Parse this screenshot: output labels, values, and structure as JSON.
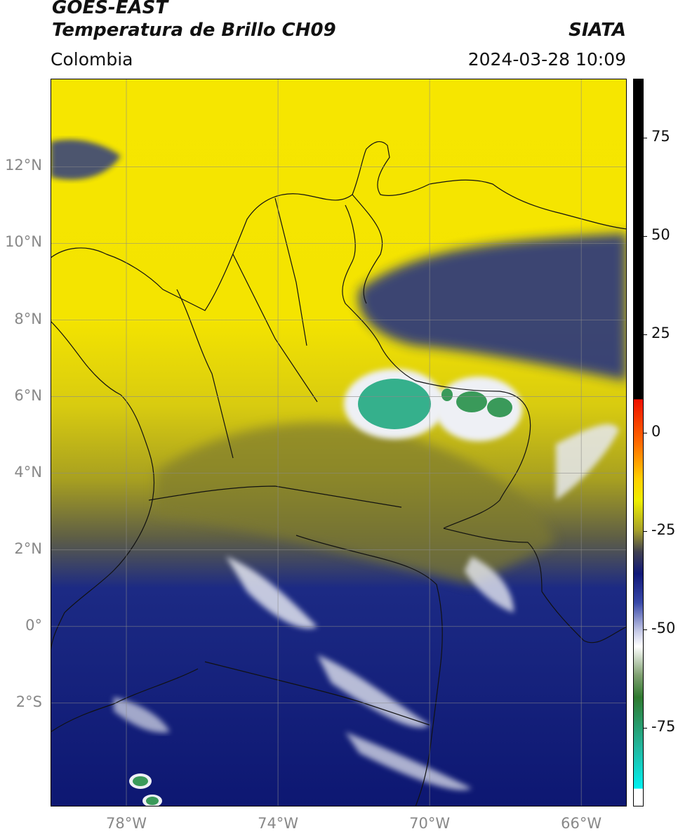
{
  "header": {
    "satellite": "GOES-EAST",
    "product": "Temperatura de Brillo CH09",
    "region": "Colombia",
    "agency": "SIATA",
    "datetime": "2024-03-28 10:09"
  },
  "map": {
    "lon_range": [
      -80,
      -64.8
    ],
    "lat_range": [
      -4.7,
      14.3
    ],
    "lat_ticks": [
      {
        "value": 12,
        "label": "12°N"
      },
      {
        "value": 10,
        "label": "10°N"
      },
      {
        "value": 8,
        "label": "8°N"
      },
      {
        "value": 6,
        "label": "6°N"
      },
      {
        "value": 4,
        "label": "4°N"
      },
      {
        "value": 2,
        "label": "2°N"
      },
      {
        "value": 0,
        "label": "0°"
      },
      {
        "value": -2,
        "label": "2°S"
      }
    ],
    "lon_ticks": [
      {
        "value": -78,
        "label": "78°W"
      },
      {
        "value": -74,
        "label": "74°W"
      },
      {
        "value": -70,
        "label": "70°W"
      },
      {
        "value": -66,
        "label": "66°W"
      }
    ],
    "colors": {
      "warm": "#f4e400",
      "mid": "#9b9a2a",
      "cold": "#1a2a8a",
      "deep": "#0a1170",
      "white": "#eef0f5",
      "green": "#3a9a5a",
      "teal": "#35b08c",
      "border": "#111111",
      "grid": "#8a8a8a"
    }
  },
  "colorbar": {
    "range": [
      -95,
      90
    ],
    "ticks": [
      {
        "value": 75,
        "label": "75"
      },
      {
        "value": 50,
        "label": "50"
      },
      {
        "value": 25,
        "label": "25"
      },
      {
        "value": 0,
        "label": "0"
      },
      {
        "value": -25,
        "label": "-25"
      },
      {
        "value": -50,
        "label": "-50"
      },
      {
        "value": -75,
        "label": "-75"
      }
    ]
  }
}
